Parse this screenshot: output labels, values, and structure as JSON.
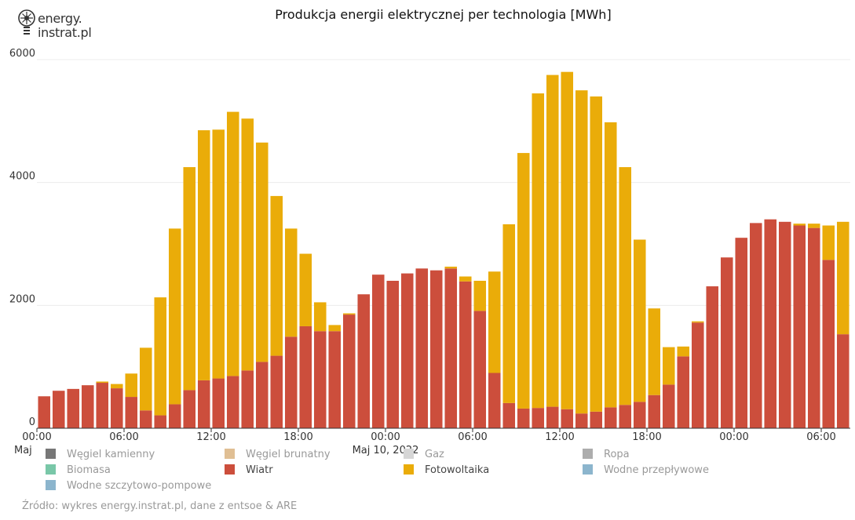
{
  "logo": {
    "line1": "energy.",
    "line2": "instrat.pl"
  },
  "chart_data": {
    "type": "bar",
    "stacked": true,
    "title": "Produkcja energii elektrycznej per technologia [MWh]",
    "xlabel": "",
    "ylabel": "",
    "ylim": [
      0,
      6000
    ],
    "y_ticks": [
      "0",
      "2000",
      "4000",
      "6000"
    ],
    "x_ticks": [
      {
        "index": 0,
        "label": "00:00",
        "sub": "Maj"
      },
      {
        "index": 6,
        "label": "06:00",
        "sub": ""
      },
      {
        "index": 12,
        "label": "12:00",
        "sub": ""
      },
      {
        "index": 18,
        "label": "18:00",
        "sub": ""
      },
      {
        "index": 24,
        "label": "00:00",
        "sub": "Maj 10, 2022"
      },
      {
        "index": 30,
        "label": "06:00",
        "sub": ""
      },
      {
        "index": 36,
        "label": "12:00",
        "sub": ""
      },
      {
        "index": 42,
        "label": "18:00",
        "sub": ""
      },
      {
        "index": 48,
        "label": "00:00",
        "sub": ""
      },
      {
        "index": 54,
        "label": "06:00",
        "sub": ""
      }
    ],
    "series": [
      {
        "name": "Wiatr",
        "color": "#cc4e3c",
        "values": [
          520,
          610,
          640,
          700,
          740,
          650,
          510,
          290,
          210,
          390,
          620,
          780,
          810,
          850,
          940,
          1080,
          1180,
          1490,
          1660,
          1580,
          1580,
          1850,
          2180,
          2500,
          2400,
          2520,
          2600,
          2570,
          2600,
          2390,
          1910,
          900,
          410,
          320,
          330,
          350,
          310,
          240,
          270,
          340,
          380,
          430,
          540,
          710,
          1170,
          1720,
          2310,
          2780,
          3100,
          3340,
          3400,
          3360,
          3300,
          3260,
          2740,
          1530
        ]
      },
      {
        "name": "Fotowoltaika",
        "color": "#eaac09",
        "values": [
          0,
          0,
          0,
          0,
          20,
          70,
          380,
          1020,
          1920,
          2860,
          3630,
          4070,
          4050,
          4300,
          4100,
          3570,
          2600,
          1760,
          1180,
          470,
          100,
          20,
          0,
          0,
          0,
          0,
          0,
          0,
          30,
          80,
          490,
          1650,
          2910,
          4160,
          5120,
          5400,
          5490,
          5260,
          5130,
          4640,
          3870,
          2640,
          1410,
          610,
          160,
          20,
          0,
          0,
          0,
          0,
          0,
          0,
          30,
          70,
          560,
          1830
        ]
      }
    ]
  },
  "legend": [
    {
      "label": "Węgiel kamienny",
      "color": "#777777",
      "active": false
    },
    {
      "label": "Węgiel brunatny",
      "color": "#e0bf94",
      "active": false
    },
    {
      "label": "Gaz",
      "color": "#d6d6d6",
      "active": false
    },
    {
      "label": "Ropa",
      "color": "#adadad",
      "active": false
    },
    {
      "label": "Biomasa",
      "color": "#79c7a8",
      "active": false
    },
    {
      "label": "Wiatr",
      "color": "#cc4e3c",
      "active": true
    },
    {
      "label": "Fotowoltaika",
      "color": "#eaac09",
      "active": true
    },
    {
      "label": "Wodne przepływowe",
      "color": "#8cb5cd",
      "active": false
    },
    {
      "label": "Wodne szczytowo-pompowe",
      "color": "#8cb5cd",
      "active": false
    }
  ],
  "source": "Źródło: wykres energy.instrat.pl, dane z entsoe & ARE"
}
